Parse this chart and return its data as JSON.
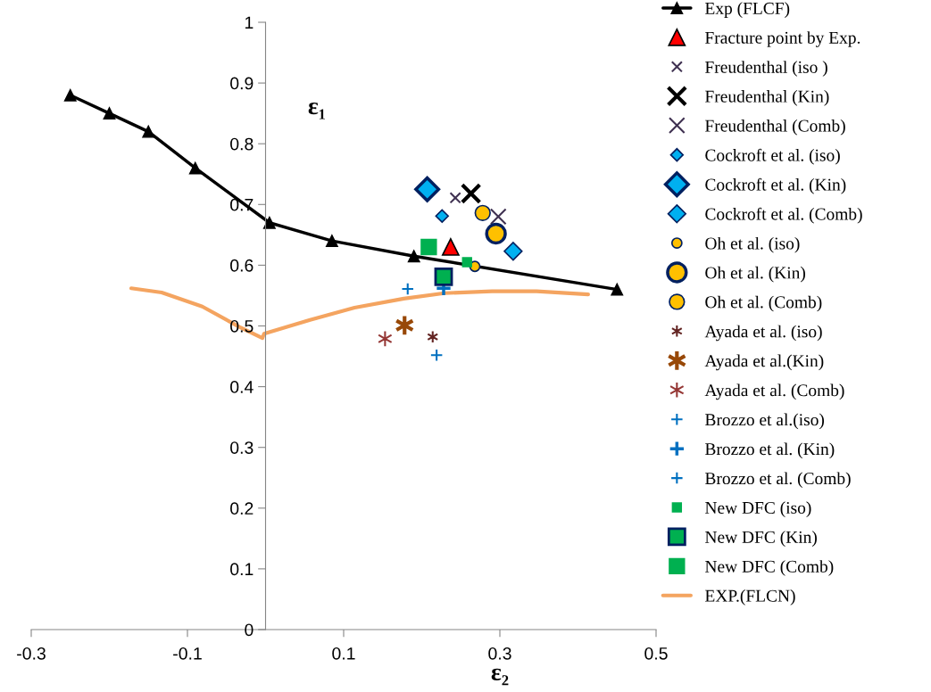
{
  "chart_data": {
    "type": "scatter",
    "xlabel": "ε₂",
    "ylabel": "ε₁",
    "xlim": [
      -0.3,
      0.5
    ],
    "xticks": [
      -0.3,
      -0.1,
      0.1,
      0.3,
      0.5
    ],
    "ylim": [
      0,
      1
    ],
    "yticks": [
      0,
      0.1,
      0.2,
      0.3,
      0.4,
      0.5,
      0.6,
      0.7,
      0.8,
      0.9,
      1
    ],
    "grid": false,
    "legend": "right",
    "series": [
      {
        "name": "Exp (FLCF)",
        "type": "line",
        "marker": "triangle",
        "color": "#000000",
        "x": [
          -0.25,
          -0.2,
          -0.15,
          -0.09,
          0.005,
          0.085,
          0.19,
          0.45
        ],
        "values": [
          0.88,
          0.85,
          0.82,
          0.76,
          0.67,
          0.64,
          0.615,
          0.56
        ]
      },
      {
        "name": "Fracture point by Exp.",
        "marker": "triangle",
        "color": "#ff0000",
        "x": [
          0.237
        ],
        "values": [
          0.63
        ]
      },
      {
        "name": "Freudenthal (iso )",
        "marker": "cross",
        "color": "#3f3151",
        "x": [
          0.243
        ],
        "values": [
          0.711
        ]
      },
      {
        "name": "Freudenthal (Kin)",
        "marker": "cross",
        "color": "#000000",
        "x": [
          0.263
        ],
        "values": [
          0.718
        ]
      },
      {
        "name": "Freudenthal (Comb)",
        "marker": "cross",
        "color": "#3f3151",
        "x": [
          0.298
        ],
        "values": [
          0.68
        ]
      },
      {
        "name": "Cockroft et al. (iso)",
        "marker": "diamond",
        "color": "#00b0f0",
        "x": [
          0.226
        ],
        "values": [
          0.681
        ]
      },
      {
        "name": "Cockroft et al. (Kin)",
        "marker": "diamond",
        "color": "#00b0f0",
        "x": [
          0.207
        ],
        "values": [
          0.725
        ]
      },
      {
        "name": "Cockroft et al. (Comb)",
        "marker": "diamond",
        "color": "#00b0f0",
        "x": [
          0.317
        ],
        "values": [
          0.623
        ]
      },
      {
        "name": "Oh et al. (iso)",
        "marker": "circle",
        "color": "#ffc000",
        "x": [
          0.268
        ],
        "values": [
          0.598
        ]
      },
      {
        "name": "Oh et al. (Kin)",
        "marker": "circle",
        "color": "#ffc000",
        "x": [
          0.295
        ],
        "values": [
          0.652
        ]
      },
      {
        "name": "Oh et al. (Comb)",
        "marker": "circle",
        "color": "#ffc000",
        "x": [
          0.278
        ],
        "values": [
          0.686
        ]
      },
      {
        "name": "Ayada et al. (iso)",
        "marker": "cross",
        "color": "#632523",
        "x": [
          0.214
        ],
        "values": [
          0.482
        ]
      },
      {
        "name": "Ayada et al.(Kin)",
        "marker": "cross",
        "color": "#984807",
        "x": [
          0.178
        ],
        "values": [
          0.501
        ]
      },
      {
        "name": "Ayada et al. (Comb)",
        "marker": "cross",
        "color": "#953735",
        "x": [
          0.153
        ],
        "values": [
          0.479
        ]
      },
      {
        "name": "Brozzo et al.(iso)",
        "marker": "plus",
        "color": "#0070c0",
        "x": [
          0.182
        ],
        "values": [
          0.561
        ]
      },
      {
        "name": "Brozzo et al. (Kin)",
        "marker": "plus",
        "color": "#0070c0",
        "x": [
          0.228
        ],
        "values": [
          0.562
        ]
      },
      {
        "name": "Brozzo et al. (Comb)",
        "marker": "plus",
        "color": "#0070c0",
        "x": [
          0.219
        ],
        "values": [
          0.452
        ]
      },
      {
        "name": "New DFC (iso)",
        "marker": "square",
        "color": "#00b050",
        "x": [
          0.258
        ],
        "values": [
          0.605
        ]
      },
      {
        "name": "New DFC (Kin)",
        "marker": "square",
        "color": "#00b050",
        "x": [
          0.228
        ],
        "values": [
          0.581
        ]
      },
      {
        "name": "New DFC (Comb)",
        "marker": "square",
        "color": "#00b050",
        "x": [
          0.209
        ],
        "values": [
          0.63
        ]
      },
      {
        "name": "EXP.(FLCN)",
        "type": "line",
        "marker": "none",
        "color": "#f4a460",
        "x": [
          -0.172,
          -0.133,
          -0.081,
          -0.033,
          -0.004,
          -0.002,
          0.057,
          0.114,
          0.177,
          0.229,
          0.29,
          0.347,
          0.413
        ],
        "values": [
          0.562,
          0.555,
          0.532,
          0.498,
          0.48,
          0.487,
          0.51,
          0.53,
          0.545,
          0.554,
          0.557,
          0.557,
          0.552
        ]
      }
    ]
  }
}
